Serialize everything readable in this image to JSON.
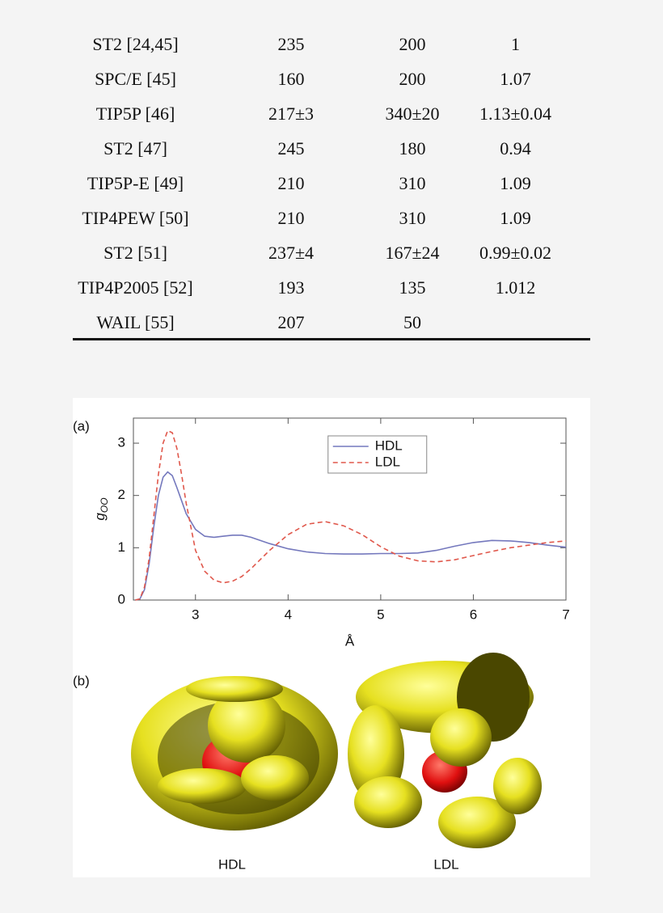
{
  "table": {
    "rows": [
      [
        "ST2 [24,45]",
        "235",
        "200",
        "1"
      ],
      [
        "SPC/E [45]",
        "160",
        "200",
        "1.07"
      ],
      [
        "TIP5P [46]",
        "217±3",
        "340±20",
        "1.13±0.04"
      ],
      [
        "ST2 [47]",
        "245",
        "180",
        "0.94"
      ],
      [
        "TIP5P-E [49]",
        "210",
        "310",
        "1.09"
      ],
      [
        "TIP4PEW [50]",
        "210",
        "310",
        "1.09"
      ],
      [
        "ST2 [51]",
        "237±4",
        "167±24",
        "0.99±0.02"
      ],
      [
        "TIP4P2005 [52]",
        "193",
        "135",
        "1.012"
      ],
      [
        "WAIL [55]",
        "207",
        "50"
      ]
    ]
  },
  "chart_data": {
    "type": "line",
    "panel_label": "(a)",
    "x_label": "Å",
    "y_label": "g",
    "y_label_subscript": "OO",
    "x": [
      2.35,
      2.4,
      2.45,
      2.5,
      2.55,
      2.6,
      2.65,
      2.7,
      2.75,
      2.8,
      2.85,
      2.9,
      3.0,
      3.1,
      3.2,
      3.3,
      3.4,
      3.5,
      3.6,
      3.8,
      4.0,
      4.2,
      4.4,
      4.6,
      4.8,
      5.0,
      5.2,
      5.4,
      5.6,
      5.8,
      6.0,
      6.2,
      6.4,
      6.6,
      6.8,
      7.0
    ],
    "series": [
      {
        "name": "HDL",
        "color": "#7478bd",
        "dash": "solid",
        "values": [
          0,
          0.02,
          0.2,
          0.7,
          1.4,
          2.0,
          2.35,
          2.45,
          2.38,
          2.15,
          1.9,
          1.65,
          1.35,
          1.22,
          1.2,
          1.22,
          1.24,
          1.24,
          1.2,
          1.08,
          0.98,
          0.92,
          0.89,
          0.88,
          0.88,
          0.89,
          0.89,
          0.9,
          0.95,
          1.03,
          1.1,
          1.14,
          1.13,
          1.1,
          1.05,
          1.01
        ]
      },
      {
        "name": "LDL",
        "color": "#e0584c",
        "dash": "dashed",
        "values": [
          0,
          0.02,
          0.25,
          0.8,
          1.6,
          2.4,
          3.0,
          3.24,
          3.2,
          2.9,
          2.4,
          1.85,
          0.95,
          0.55,
          0.38,
          0.33,
          0.36,
          0.45,
          0.6,
          0.95,
          1.25,
          1.45,
          1.5,
          1.42,
          1.25,
          1.02,
          0.84,
          0.75,
          0.73,
          0.77,
          0.85,
          0.93,
          1.0,
          1.05,
          1.1,
          1.13
        ]
      }
    ],
    "xlim": [
      2.33,
      7
    ],
    "ylim": [
      0,
      3.48
    ],
    "xticks": [
      3,
      4,
      5,
      6,
      7
    ],
    "yticks": [
      0,
      1,
      2,
      3
    ],
    "legend": "upper center"
  },
  "figure": {
    "panel_b": "(b)",
    "captions": [
      "HDL",
      "LDL"
    ]
  }
}
